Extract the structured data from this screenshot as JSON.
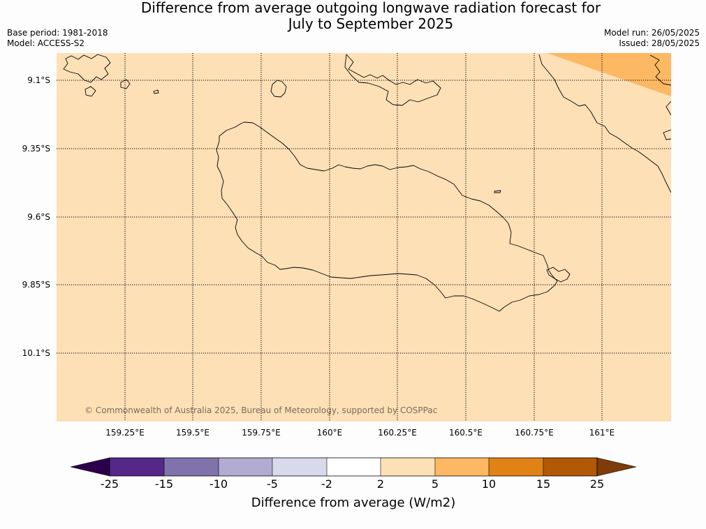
{
  "header": {
    "title_line1": "Difference from average outgoing longwave radiation forecast for",
    "title_line2": "July to September 2025",
    "base_period": "Base period: 1981-2018",
    "model": "Model: ACCESS-S2",
    "model_run": "Model run: 26/05/2025",
    "issued": "Issued: 28/05/2025"
  },
  "map": {
    "lon_ticks": [
      "159.25°E",
      "159.5°E",
      "159.75°E",
      "160°E",
      "160.25°E",
      "160.5°E",
      "160.75°E",
      "161°E"
    ],
    "lat_ticks": [
      "9.1°S",
      "9.35°S",
      "9.6°S",
      "9.85°S",
      "10.1°S"
    ],
    "background_category": "2 to 5",
    "background_color": "#fde0b6",
    "highlight_category": "5 to 10",
    "highlight_color": "#fdb863",
    "coastline_color": "#000000",
    "copyright": "© Commonwealth of Australia 2025, Bureau of Meteorology, supported by COSPPac"
  },
  "colorbar": {
    "title": "Difference from average (W/m2)",
    "ticks": [
      "-25",
      "-15",
      "-10",
      "-5",
      "-2",
      "2",
      "5",
      "10",
      "15",
      "25"
    ],
    "low_extend_color": "#2d004b",
    "high_extend_color": "#7f3b08",
    "bins": [
      {
        "range": "-25 to -15",
        "color": "#542788"
      },
      {
        "range": "-15 to -10",
        "color": "#8073ac"
      },
      {
        "range": "-10 to -5",
        "color": "#b2abd2"
      },
      {
        "range": "-5 to -2",
        "color": "#d8daeb"
      },
      {
        "range": "-2 to 2",
        "color": "#ffffff"
      },
      {
        "range": "2 to 5",
        "color": "#fee0b6"
      },
      {
        "range": "5 to 10",
        "color": "#fdb863"
      },
      {
        "range": "10 to 15",
        "color": "#e08214"
      },
      {
        "range": "15 to 25",
        "color": "#b35806"
      }
    ]
  }
}
